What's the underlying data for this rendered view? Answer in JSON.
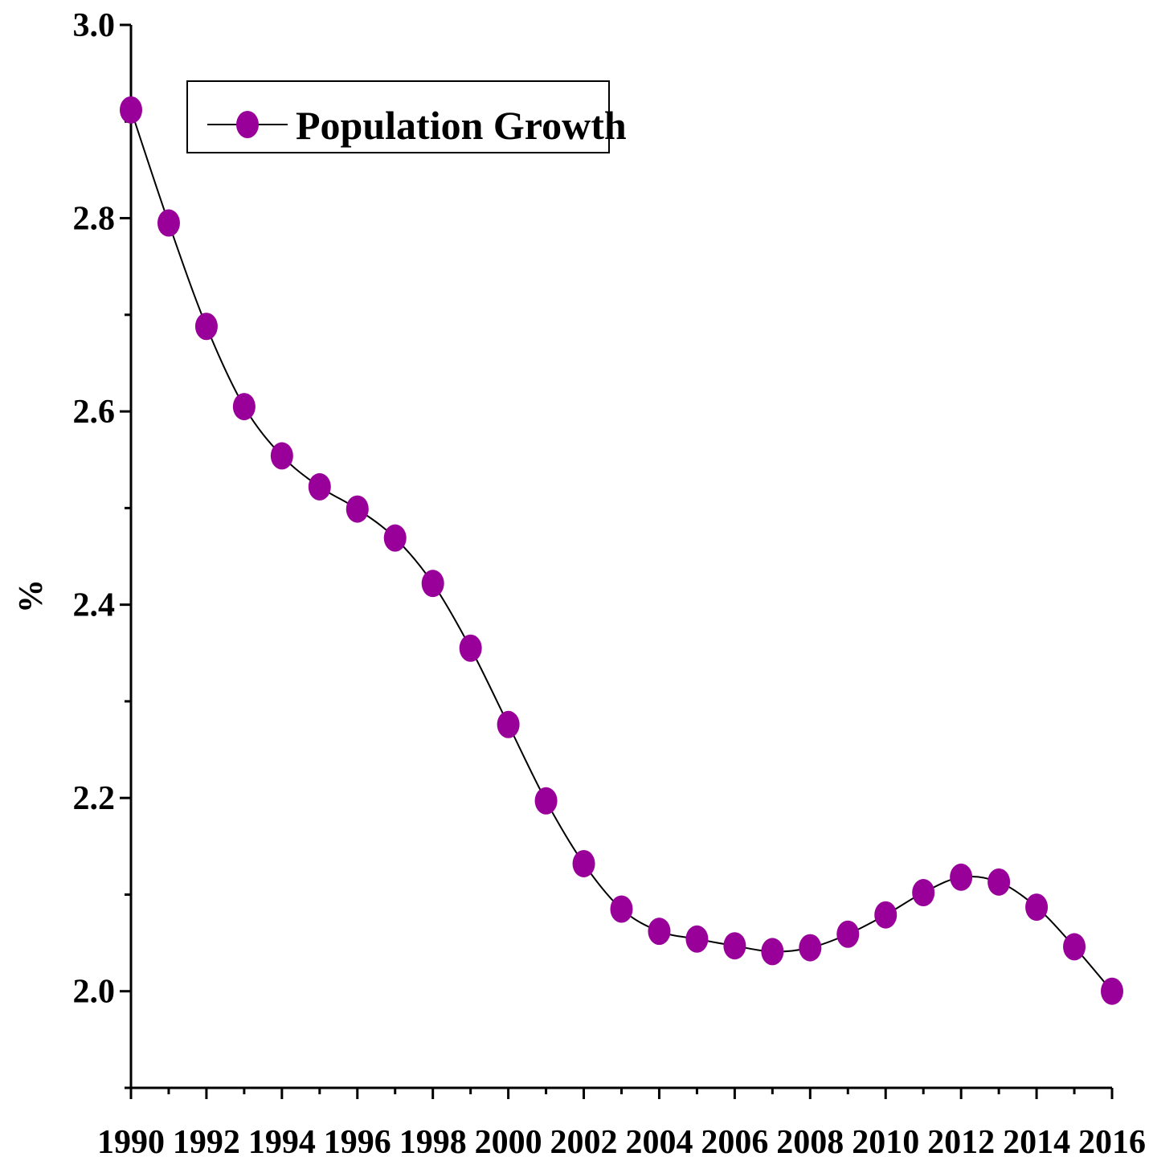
{
  "chart_data": {
    "type": "line",
    "title": "",
    "xlabel": "",
    "ylabel": "%",
    "x": [
      1990,
      1991,
      1992,
      1993,
      1994,
      1995,
      1996,
      1997,
      1998,
      1999,
      2000,
      2001,
      2002,
      2003,
      2004,
      2005,
      2006,
      2007,
      2008,
      2009,
      2010,
      2011,
      2012,
      2013,
      2014,
      2015,
      2016
    ],
    "series": [
      {
        "name": "Population Growth",
        "values": [
          2.912,
          2.795,
          2.688,
          2.605,
          2.554,
          2.522,
          2.499,
          2.469,
          2.422,
          2.355,
          2.276,
          2.197,
          2.132,
          2.085,
          2.062,
          2.054,
          2.047,
          2.041,
          2.045,
          2.059,
          2.079,
          2.102,
          2.118,
          2.113,
          2.087,
          2.046,
          2.0
        ]
      }
    ],
    "xlim": [
      1990,
      2016
    ],
    "ylim": [
      1.9,
      3.0
    ],
    "x_tick_labels": [
      "1990",
      "1992",
      "1994",
      "1996",
      "1998",
      "2000",
      "2002",
      "2004",
      "2006",
      "2008",
      "2010",
      "2012",
      "2014",
      "2016"
    ],
    "y_tick_labels": [
      "2.0",
      "2.2",
      "2.4",
      "2.6",
      "2.8",
      "3.0"
    ],
    "legend_position": "top-left",
    "grid": false,
    "colors": {
      "marker": "#990099",
      "line": "#000000",
      "axis": "#000000"
    }
  }
}
